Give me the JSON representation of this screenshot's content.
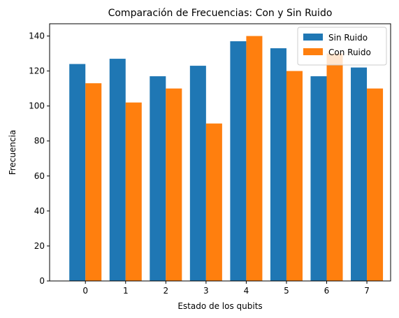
{
  "chart_data": {
    "type": "bar",
    "title": "Comparación de Frecuencias: Con y Sin Ruido",
    "xlabel": "Estado de los qubits",
    "ylabel": "Frecuencia",
    "categories": [
      "0",
      "1",
      "2",
      "3",
      "4",
      "5",
      "6",
      "7"
    ],
    "series": [
      {
        "name": "Sin Ruido",
        "color": "#1f77b4",
        "values": [
          124,
          127,
          117,
          123,
          137,
          133,
          117,
          122
        ]
      },
      {
        "name": "Con Ruido",
        "color": "#ff7f0e",
        "values": [
          113,
          102,
          110,
          90,
          140,
          120,
          130,
          110
        ]
      }
    ],
    "ylim": [
      0,
      147
    ],
    "yticks": [
      0,
      20,
      40,
      60,
      80,
      100,
      120,
      140
    ],
    "grid": false,
    "legend_position": "top-right"
  }
}
